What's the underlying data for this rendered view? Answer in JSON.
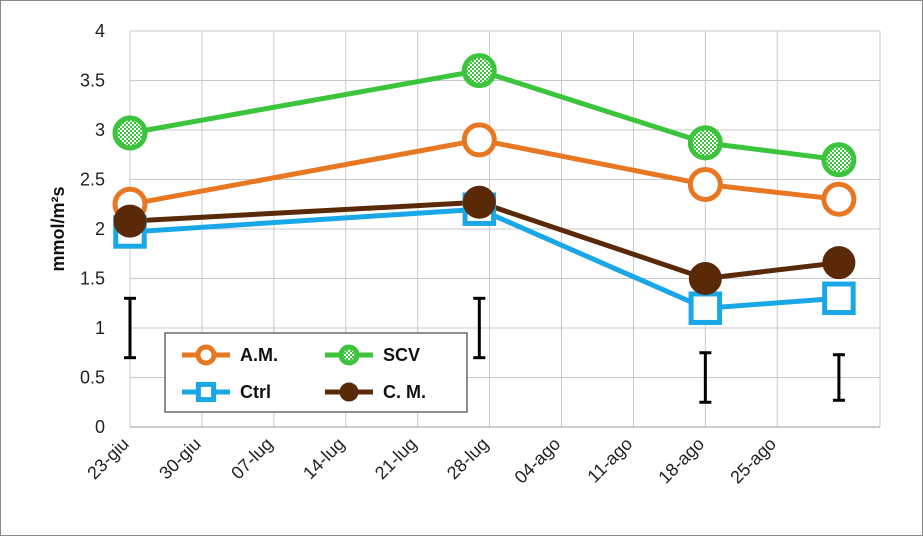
{
  "chart_data": {
    "type": "line",
    "ylabel": "mmol/m²s",
    "xlabel": "",
    "title": "",
    "ylim": [
      0,
      4
    ],
    "yticks": [
      "0",
      "0.5",
      "1",
      "1.5",
      "2",
      "2.5",
      "3",
      "3.5",
      "4"
    ],
    "xlim": [
      "2013-06-23",
      "2013-09-04"
    ],
    "xticks": [
      "23-giu",
      "30-giu",
      "07-lug",
      "14-lug",
      "21-lug",
      "28-lug",
      "04-ago",
      "11-ago",
      "18-ago",
      "25-ago"
    ],
    "grid": true,
    "legend_position": "bottom-left",
    "dates": [
      "2013-06-23",
      "2013-07-27",
      "2013-08-18",
      "2013-08-31"
    ],
    "series": [
      {
        "name": "A.M.",
        "color": "#E87722",
        "marker": "open-circle",
        "values": [
          2.25,
          2.9,
          2.45,
          2.3
        ]
      },
      {
        "name": "SCV",
        "color": "#3CC43C",
        "marker": "checkered-circle",
        "values": [
          2.97,
          3.6,
          2.87,
          2.7
        ]
      },
      {
        "name": "Ctrl",
        "color": "#1AA7E8",
        "marker": "open-square",
        "values": [
          1.97,
          2.2,
          1.2,
          1.3
        ]
      },
      {
        "name": "C. M.",
        "color": "#5A2A08",
        "marker": "filled-circle",
        "values": [
          2.08,
          2.27,
          1.5,
          1.66
        ]
      }
    ],
    "error_bars": [
      {
        "date": "2013-06-23",
        "low": 0.7,
        "high": 1.3
      },
      {
        "date": "2013-07-27",
        "low": 0.7,
        "high": 1.3
      },
      {
        "date": "2013-08-18",
        "low": 0.25,
        "high": 0.75
      },
      {
        "date": "2013-08-31",
        "low": 0.27,
        "high": 0.73
      }
    ]
  }
}
